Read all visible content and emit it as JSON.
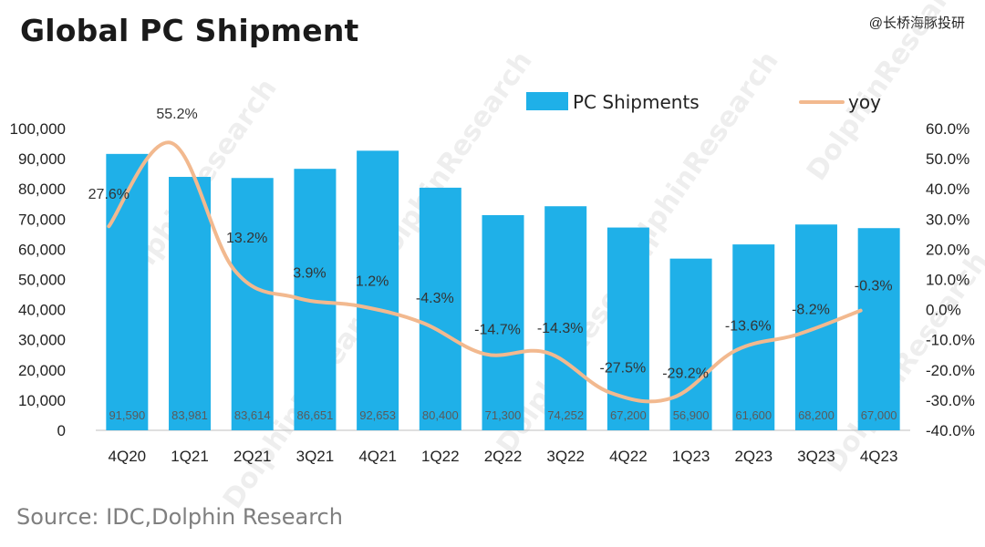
{
  "header": {
    "title": "Global PC Shipment",
    "corner_tag": "@长桥海豚投研"
  },
  "footer": {
    "source": "Source: IDC,Dolphin Research"
  },
  "watermark": {
    "text": "DolphinResearch",
    "cn_text": "海豚投研"
  },
  "colors": {
    "bar": "#1fb0e8",
    "line": "#f2b98f",
    "background": "#ffffff"
  },
  "chart_data": {
    "type": "bar",
    "title": "Global PC Shipment",
    "categories": [
      "4Q20",
      "1Q21",
      "2Q21",
      "3Q21",
      "4Q21",
      "1Q22",
      "2Q22",
      "3Q22",
      "4Q22",
      "1Q23",
      "2Q23",
      "3Q23",
      "4Q23"
    ],
    "series": [
      {
        "name": "PC Shipments",
        "type": "bar",
        "axis": "left",
        "values": [
          91590,
          83981,
          83614,
          86651,
          92653,
          80400,
          71300,
          74252,
          67200,
          56900,
          61600,
          68200,
          67000
        ],
        "labels": [
          "91,590",
          "83,981",
          "83,614",
          "86,651",
          "92,653",
          "80,400",
          "71,300",
          "74,252",
          "67,200",
          "56,900",
          "61,600",
          "68,200",
          "67,000"
        ]
      },
      {
        "name": "yoy",
        "type": "line",
        "axis": "right",
        "values": [
          27.6,
          55.2,
          13.2,
          3.9,
          1.2,
          -4.3,
          -14.7,
          -14.3,
          -27.5,
          -29.2,
          -13.6,
          -8.2,
          -0.3
        ],
        "labels": [
          "27.6%",
          "55.2%",
          "13.2%",
          "3.9%",
          "1.2%",
          "-4.3%",
          "-14.7%",
          "-14.3%",
          "-27.5%",
          "-29.2%",
          "-13.6%",
          "-8.2%",
          "-0.3%"
        ]
      }
    ],
    "y_left": {
      "range": [
        0,
        100000
      ],
      "ticks": [
        "0",
        "10,000",
        "20,000",
        "30,000",
        "40,000",
        "50,000",
        "60,000",
        "70,000",
        "80,000",
        "90,000",
        "100,000"
      ]
    },
    "y_right": {
      "range": [
        -40,
        60
      ],
      "ticks": [
        "-40.0%",
        "-30.0%",
        "-20.0%",
        "-10.0%",
        "0.0%",
        "10.0%",
        "20.0%",
        "30.0%",
        "40.0%",
        "50.0%",
        "60.0%"
      ]
    },
    "legend": [
      "PC Shipments",
      "yoy"
    ],
    "legend_position": "top-right",
    "grid": false
  }
}
